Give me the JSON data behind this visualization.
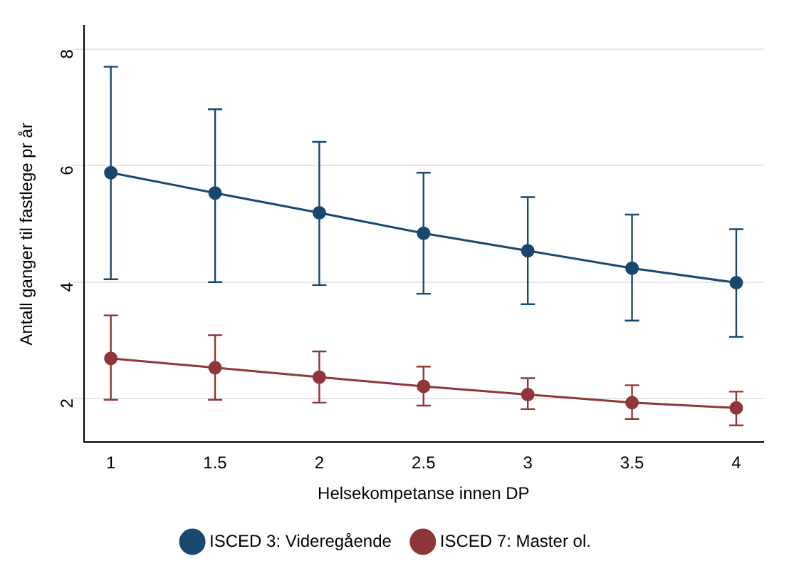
{
  "chart_data": {
    "type": "line",
    "xlabel": "Helsekompetanse innen DP",
    "ylabel": "Antall ganger til fastlege pr år",
    "x": [
      1,
      1.5,
      2,
      2.5,
      3,
      3.5,
      4
    ],
    "series": [
      {
        "name": "ISCED 3: Videregående",
        "color": "#1a476f",
        "values": [
          5.88,
          5.53,
          5.19,
          4.84,
          4.54,
          4.24,
          3.99
        ],
        "errors": [
          [
            4.05,
            7.7
          ],
          [
            4.0,
            6.97
          ],
          [
            3.95,
            6.41
          ],
          [
            3.8,
            5.88
          ],
          [
            3.62,
            5.46
          ],
          [
            3.34,
            5.16
          ],
          [
            3.06,
            4.91
          ]
        ]
      },
      {
        "name": "ISCED 7: Master ol.",
        "color": "#90353b",
        "values": [
          2.69,
          2.53,
          2.37,
          2.21,
          2.07,
          1.93,
          1.84
        ],
        "errors": [
          [
            1.98,
            3.43
          ],
          [
            1.98,
            3.09
          ],
          [
            1.93,
            2.81
          ],
          [
            1.88,
            2.55
          ],
          [
            1.82,
            2.35
          ],
          [
            1.65,
            2.23
          ],
          [
            1.54,
            2.12
          ]
        ]
      }
    ],
    "xlim": [
      0.87,
      4.13
    ],
    "xticks": [
      1,
      1.5,
      2,
      2.5,
      3,
      3.5,
      4
    ],
    "ylim": [
      1.25,
      8.4
    ],
    "yticks": [
      2,
      4,
      6,
      8
    ],
    "grid": "y",
    "legend": "bottom",
    "marker": "circle",
    "line_style": "solid"
  }
}
